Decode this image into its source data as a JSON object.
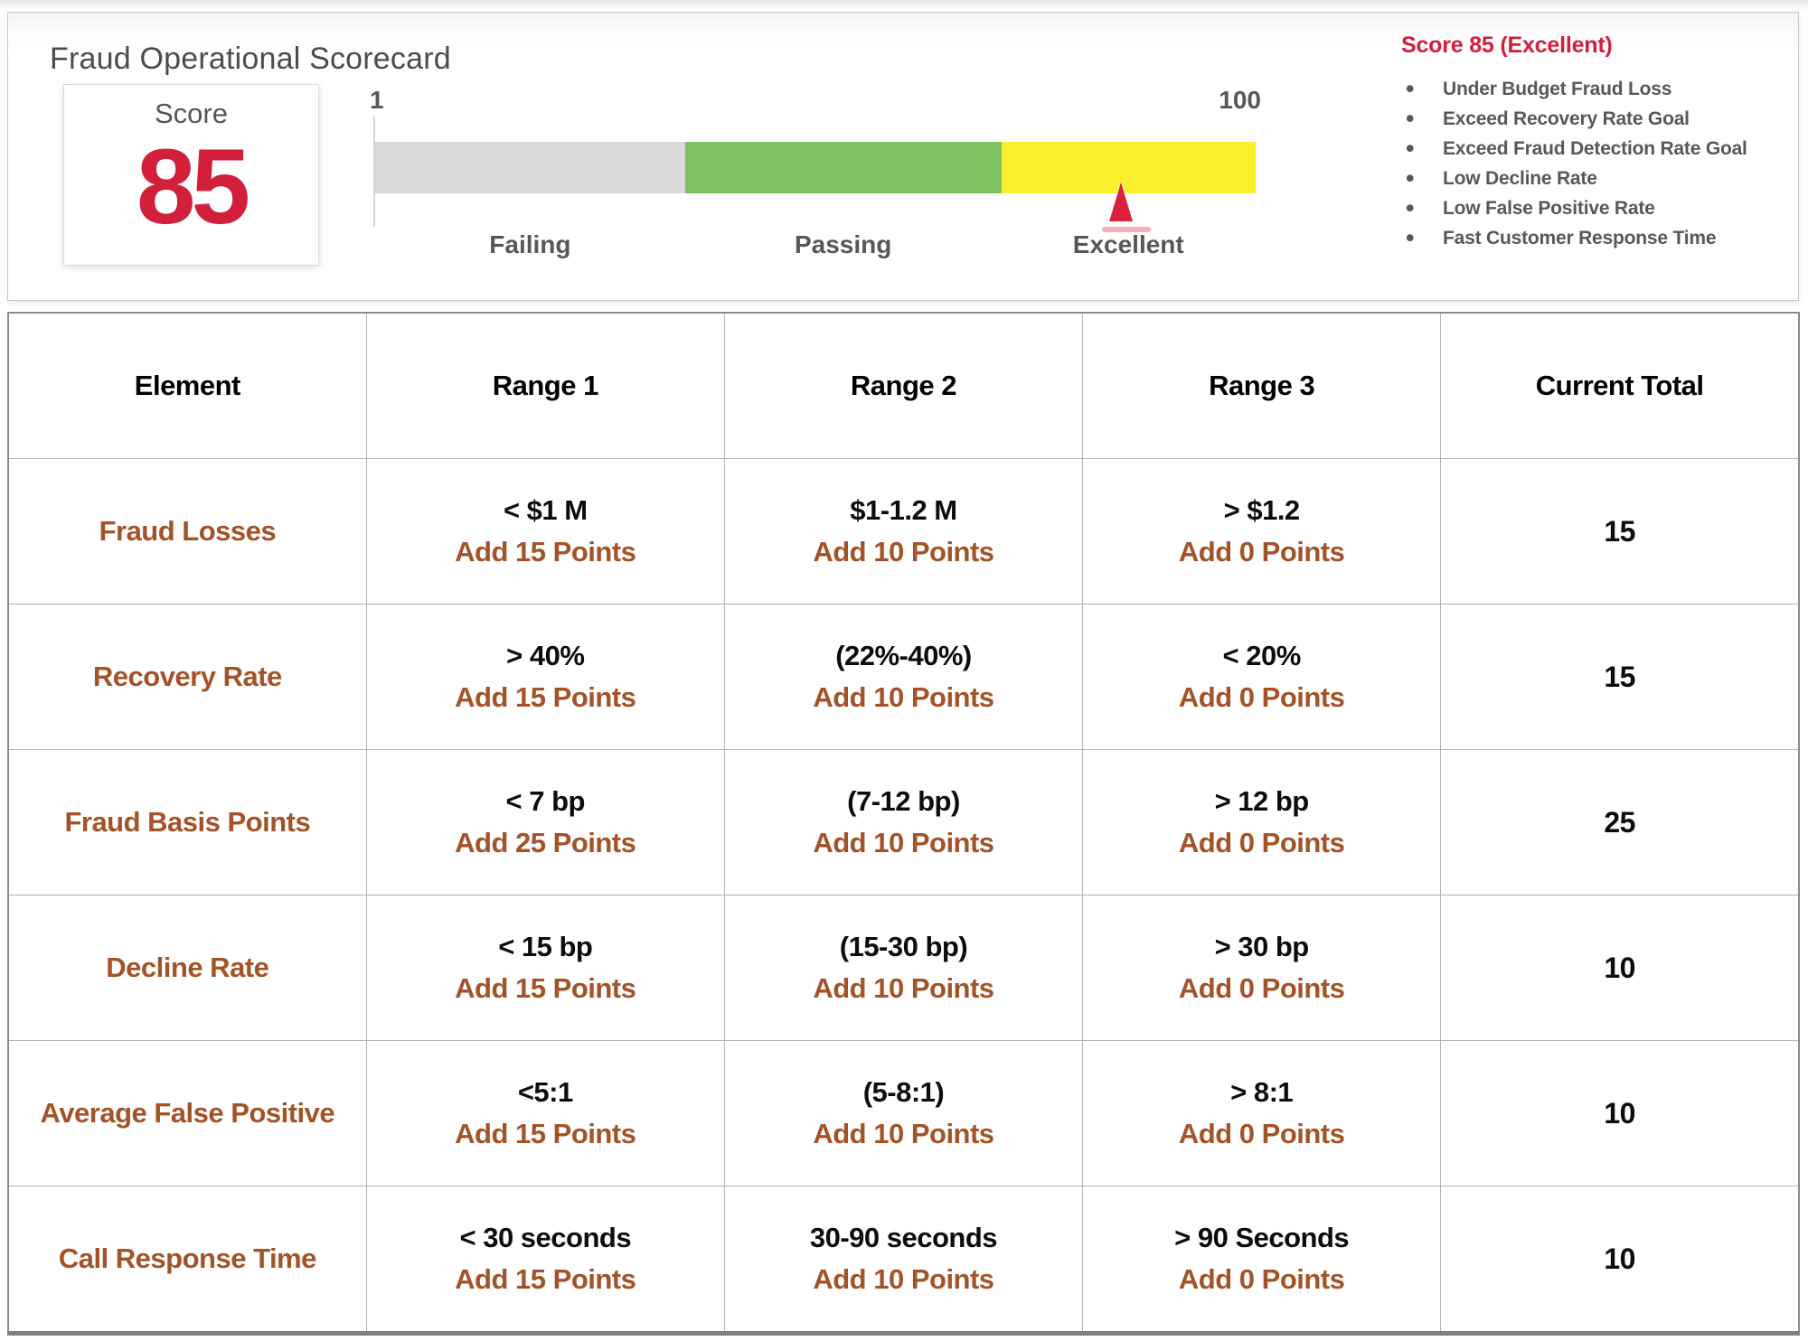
{
  "header": {
    "title": "Fraud Operational Scorecard",
    "score_card": {
      "label": "Score",
      "value": "85"
    },
    "gauge": {
      "min": "1",
      "max": "100",
      "segments": [
        {
          "label": "Failing",
          "color": "#d9d9d9"
        },
        {
          "label": "Passing",
          "color": "#7cc35f"
        },
        {
          "label": "Excellent",
          "color": "#f9ef2d"
        }
      ],
      "marker": {
        "value": 85,
        "color": "#da2140"
      }
    },
    "summary": {
      "title": "Score 85 (Excellent)",
      "bullet_glyph": "•",
      "bullets": [
        "Under Budget Fraud Loss",
        "Exceed Recovery Rate Goal",
        "Exceed Fraud Detection Rate Goal",
        "Low Decline Rate",
        "Low False Positive Rate",
        "Fast Customer Response Time"
      ]
    }
  },
  "table": {
    "headers": [
      "Element",
      "Range 1",
      "Range 2",
      "Range 3",
      "Current Total"
    ],
    "rows": [
      {
        "element": "Fraud Losses",
        "range1": {
          "value": "< $1 M",
          "points": "Add 15 Points"
        },
        "range2": {
          "value": "$1-1.2 M",
          "points": "Add 10 Points"
        },
        "range3": {
          "value": "> $1.2",
          "points": "Add 0 Points"
        },
        "total": "15"
      },
      {
        "element": "Recovery Rate",
        "range1": {
          "value": "> 40%",
          "points": "Add 15 Points"
        },
        "range2": {
          "value": "(22%-40%)",
          "points": "Add 10 Points"
        },
        "range3": {
          "value": "< 20%",
          "points": "Add 0 Points"
        },
        "total": "15"
      },
      {
        "element": "Fraud Basis Points",
        "range1": {
          "value": "< 7 bp",
          "points": "Add 25 Points"
        },
        "range2": {
          "value": "(7-12 bp)",
          "points": "Add 10 Points"
        },
        "range3": {
          "value": "> 12 bp",
          "points": "Add 0 Points"
        },
        "total": "25"
      },
      {
        "element": "Decline Rate",
        "range1": {
          "value": "< 15 bp",
          "points": "Add 15 Points"
        },
        "range2": {
          "value": "(15-30 bp)",
          "points": "Add 10 Points"
        },
        "range3": {
          "value": "> 30 bp",
          "points": "Add 0 Points"
        },
        "total": "10"
      },
      {
        "element": "Average False Positive",
        "range1": {
          "value": "<5:1",
          "points": "Add 15 Points"
        },
        "range2": {
          "value": "(5-8:1)",
          "points": "Add 10 Points"
        },
        "range3": {
          "value": "> 8:1",
          "points": "Add 0 Points"
        },
        "total": "10"
      },
      {
        "element": "Call Response Time",
        "range1": {
          "value": "< 30 seconds",
          "points": "Add 15 Points"
        },
        "range2": {
          "value": "30-90 seconds",
          "points": "Add 10 Points"
        },
        "range3": {
          "value": "> 90 Seconds",
          "points": "Add 0 Points"
        },
        "total": "10"
      }
    ]
  },
  "colors": {
    "accent_red": "#d21f3b",
    "accent_brown": "#a35327",
    "gauge_gray": "#d9d9d9",
    "gauge_green": "#7cc35f",
    "gauge_yellow": "#f9ef2d",
    "marker_red": "#da2140",
    "text_gray": "#57585a"
  },
  "chart_data": [
    {
      "type": "bar",
      "subtype": "linear-gauge",
      "title": "Fraud Operational Scorecard",
      "xlim": [
        1,
        100
      ],
      "grid": false,
      "segments": [
        {
          "label": "Failing",
          "from": 1,
          "to": 36,
          "color": "#d9d9d9"
        },
        {
          "label": "Passing",
          "from": 36,
          "to": 71,
          "color": "#7cc35f"
        },
        {
          "label": "Excellent",
          "from": 71,
          "to": 100,
          "color": "#f9ef2d"
        }
      ],
      "marker": {
        "value": 85,
        "label": "Score"
      },
      "annotations": [
        "Score 85 (Excellent)",
        "Score = 85"
      ]
    },
    {
      "type": "table",
      "columns": [
        "Element",
        "Range 1",
        "Range 2",
        "Range 3",
        "Current Total"
      ],
      "rows": [
        [
          "Fraud Losses",
          "< $1 M / Add 15 Points",
          "$1-1.2 M / Add 10 Points",
          "> $1.2 / Add 0 Points",
          15
        ],
        [
          "Recovery Rate",
          "> 40% / Add 15 Points",
          "(22%-40%) / Add 10 Points",
          "< 20% / Add 0 Points",
          15
        ],
        [
          "Fraud Basis Points",
          "< 7 bp / Add 25 Points",
          "(7-12 bp) / Add 10 Points",
          "> 12 bp / Add 0 Points",
          25
        ],
        [
          "Decline Rate",
          "< 15 bp / Add 15 Points",
          "(15-30 bp) / Add 10 Points",
          "> 30 bp / Add 0 Points",
          10
        ],
        [
          "Average False Positive",
          "<5:1 / Add 15 Points",
          "(5-8:1) / Add 10 Points",
          "> 8:1 / Add 0 Points",
          10
        ],
        [
          "Call Response Time",
          "< 30 seconds / Add 15 Points",
          "30-90 seconds / Add 10 Points",
          "> 90 Seconds / Add 0 Points",
          10
        ]
      ]
    }
  ]
}
